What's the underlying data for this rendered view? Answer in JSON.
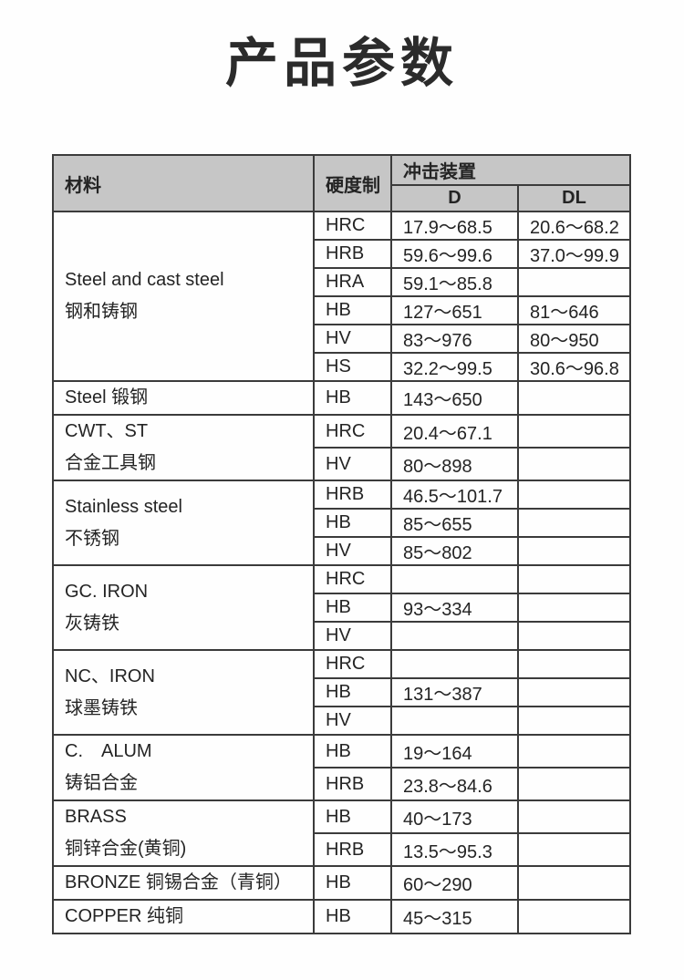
{
  "page": {
    "title": "产品参数"
  },
  "table": {
    "header": {
      "material": "材料",
      "scale": "硬度制",
      "impact_device": "冲击装置",
      "d": "D",
      "dl": "DL"
    },
    "colors": {
      "header_bg": "#c6c6c6",
      "border": "#3b3b3b"
    },
    "groups": [
      {
        "material_lines": [
          "Steel and cast steel",
          "钢和铸钢"
        ],
        "rows": [
          {
            "scale": "HRC",
            "d": "17.9～68.5",
            "dl": "20.6～68.2"
          },
          {
            "scale": "HRB",
            "d": "59.6～99.6",
            "dl": "37.0～99.9"
          },
          {
            "scale": "HRA",
            "d": "59.1～85.8",
            "dl": ""
          },
          {
            "scale": "HB",
            "d": "127～651",
            "dl": "81～646"
          },
          {
            "scale": "HV",
            "d": "83～976",
            "dl": "80～950"
          },
          {
            "scale": "HS",
            "d": "32.2～99.5",
            "dl": "30.6～96.8"
          }
        ]
      },
      {
        "material_lines": [
          "Steel 锻钢"
        ],
        "rows": [
          {
            "scale": "HB",
            "d": "143～650",
            "dl": ""
          }
        ]
      },
      {
        "material_lines": [
          "CWT、ST",
          "合金工具钢"
        ],
        "rows": [
          {
            "scale": "HRC",
            "d": "20.4～67.1",
            "dl": ""
          },
          {
            "scale": "HV",
            "d": "80～898",
            "dl": ""
          }
        ]
      },
      {
        "material_lines": [
          "Stainless steel",
          "不锈钢"
        ],
        "rows": [
          {
            "scale": "HRB",
            "d": "46.5～101.7",
            "dl": ""
          },
          {
            "scale": "HB",
            "d": "85～655",
            "dl": ""
          },
          {
            "scale": "HV",
            "d": "85～802",
            "dl": ""
          }
        ]
      },
      {
        "material_lines": [
          "GC. IRON",
          "灰铸铁"
        ],
        "rows": [
          {
            "scale": "HRC",
            "d": "",
            "dl": ""
          },
          {
            "scale": "HB",
            "d": "93～334",
            "dl": ""
          },
          {
            "scale": "HV",
            "d": "",
            "dl": ""
          }
        ]
      },
      {
        "material_lines": [
          "NC、IRON",
          "球墨铸铁"
        ],
        "rows": [
          {
            "scale": "HRC",
            "d": "",
            "dl": ""
          },
          {
            "scale": "HB",
            "d": "131～387",
            "dl": ""
          },
          {
            "scale": "HV",
            "d": "",
            "dl": ""
          }
        ]
      },
      {
        "material_lines": [
          "C.　ALUM",
          "铸铝合金"
        ],
        "rows": [
          {
            "scale": "HB",
            "d": "19～164",
            "dl": ""
          },
          {
            "scale": "HRB",
            "d": "23.8～84.6",
            "dl": ""
          }
        ]
      },
      {
        "material_lines": [
          "BRASS",
          "铜锌合金(黄铜)"
        ],
        "rows": [
          {
            "scale": "HB",
            "d": "40～173",
            "dl": ""
          },
          {
            "scale": "HRB",
            "d": "13.5～95.3",
            "dl": ""
          }
        ]
      },
      {
        "material_lines": [
          "BRONZE 铜锡合金（青铜）"
        ],
        "rows": [
          {
            "scale": "HB",
            "d": "60～290",
            "dl": ""
          }
        ]
      },
      {
        "material_lines": [
          "COPPER 纯铜"
        ],
        "rows": [
          {
            "scale": "HB",
            "d": "45～315",
            "dl": ""
          }
        ]
      }
    ]
  }
}
